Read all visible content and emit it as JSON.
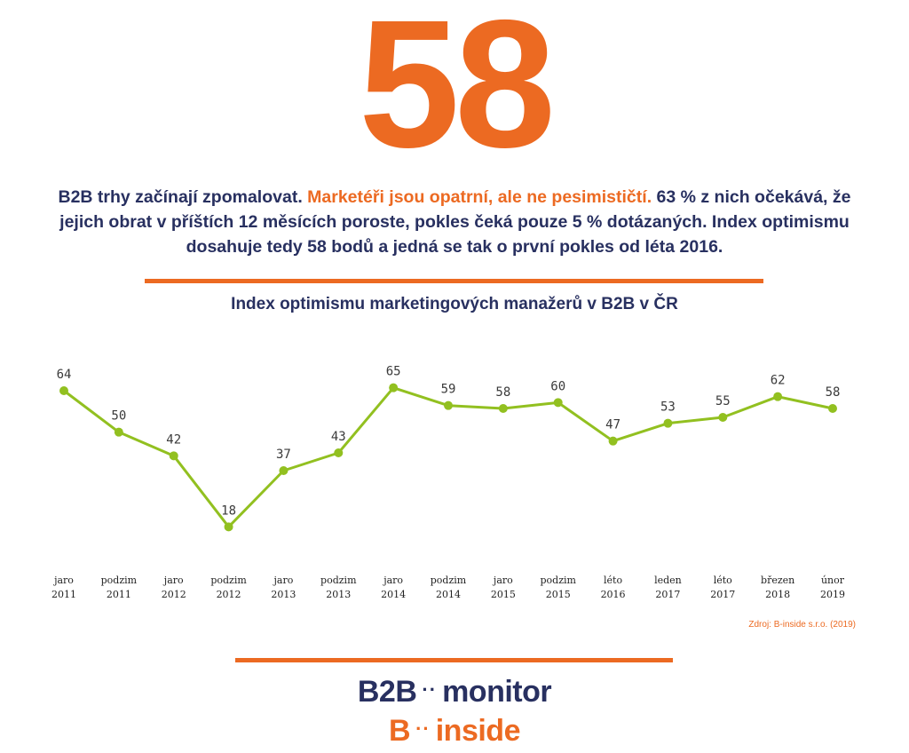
{
  "headline": {
    "number": "58"
  },
  "intro": {
    "part1": "B2B trhy začínají zpomalovat. ",
    "highlight": "Marketéři jsou opatrní, ale ne pesimističtí.",
    "part2": " 63 % z nich očekává, že jejich obrat v příštích 12 měsících poroste, pokles čeká pouze 5 % dotázaných. Index optimismu dosahuje tedy 58 bodů a jedná se tak o první pokles od léta 2016."
  },
  "colors": {
    "orange": "#ec6a22",
    "navy": "#283060",
    "green": "#92c020"
  },
  "chart_data": {
    "type": "line",
    "title": "Index optimismu marketingových manažerů v B2B v ČR",
    "xlabel": "",
    "ylabel": "",
    "ylim": [
      10,
      70
    ],
    "grid": false,
    "categories": [
      [
        "jaro",
        "2011"
      ],
      [
        "podzim",
        "2011"
      ],
      [
        "jaro",
        "2012"
      ],
      [
        "podzim",
        "2012"
      ],
      [
        "jaro",
        "2013"
      ],
      [
        "podzim",
        "2013"
      ],
      [
        "jaro",
        "2014"
      ],
      [
        "podzim",
        "2014"
      ],
      [
        "jaro",
        "2015"
      ],
      [
        "podzim",
        "2015"
      ],
      [
        "léto",
        "2016"
      ],
      [
        "leden",
        "2017"
      ],
      [
        "léto",
        "2017"
      ],
      [
        "březen",
        "2018"
      ],
      [
        "únor",
        "2019"
      ]
    ],
    "series": [
      {
        "values": [
          64,
          50,
          42,
          18,
          37,
          43,
          65,
          59,
          58,
          60,
          47,
          53,
          55,
          62,
          58
        ]
      }
    ]
  },
  "source": "Zdroj: B-inside s.r.o. (2019)",
  "logos": {
    "monitor": {
      "left": "B2B",
      "dots": "··",
      "right": "monitor"
    },
    "inside": {
      "left": "B",
      "dots": "··",
      "right": "inside"
    }
  }
}
